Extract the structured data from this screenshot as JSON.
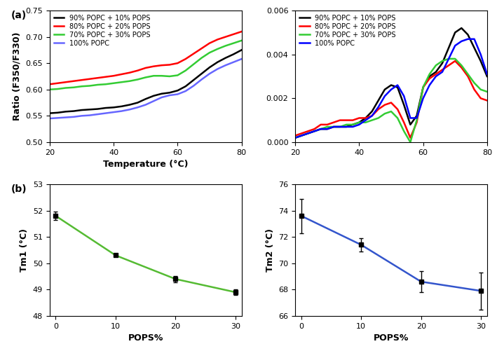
{
  "chart_data": [
    {
      "type": "line",
      "annotations": [
        "(a)"
      ],
      "x_label": "Temperature (°C)",
      "y_label": "Ratio (F350/F330)",
      "x": [
        20,
        22.5,
        25,
        27.5,
        30,
        32.5,
        35,
        37.5,
        40,
        42.5,
        45,
        47.5,
        50,
        52.5,
        55,
        57.5,
        60,
        62.5,
        65,
        67.5,
        70,
        72.5,
        75,
        77.5,
        80
      ],
      "series": [
        {
          "name": "90% POPC + 10% POPS",
          "color": "#000000",
          "values": [
            0.555,
            0.556,
            0.558,
            0.559,
            0.561,
            0.562,
            0.563,
            0.565,
            0.566,
            0.568,
            0.571,
            0.575,
            0.582,
            0.588,
            0.592,
            0.594,
            0.598,
            0.606,
            0.618,
            0.63,
            0.642,
            0.652,
            0.66,
            0.667,
            0.675
          ]
        },
        {
          "name": "80% POPC + 20% POPS",
          "color": "#ff0000",
          "values": [
            0.61,
            0.612,
            0.614,
            0.616,
            0.618,
            0.62,
            0.622,
            0.624,
            0.626,
            0.629,
            0.632,
            0.636,
            0.641,
            0.644,
            0.646,
            0.647,
            0.65,
            0.658,
            0.668,
            0.678,
            0.688,
            0.695,
            0.7,
            0.705,
            0.71
          ]
        },
        {
          "name": "70% POPC + 30% POPS",
          "color": "#33cc33",
          "values": [
            0.6,
            0.601,
            0.603,
            0.604,
            0.606,
            0.607,
            0.609,
            0.61,
            0.612,
            0.614,
            0.616,
            0.619,
            0.623,
            0.626,
            0.626,
            0.625,
            0.627,
            0.636,
            0.648,
            0.66,
            0.67,
            0.677,
            0.683,
            0.688,
            0.693
          ]
        },
        {
          "name": "100% POPC",
          "color": "#6666ff",
          "values": [
            0.545,
            0.546,
            0.547,
            0.548,
            0.55,
            0.551,
            0.553,
            0.555,
            0.557,
            0.559,
            0.562,
            0.566,
            0.571,
            0.578,
            0.585,
            0.589,
            0.591,
            0.597,
            0.607,
            0.619,
            0.63,
            0.639,
            0.646,
            0.652,
            0.658
          ]
        }
      ],
      "xlim": [
        20,
        80
      ],
      "xticks": [
        20,
        40,
        60,
        80
      ],
      "ylim": [
        0.5,
        0.75
      ],
      "yticks": [
        {
          "value": 0.5,
          "label": "0.50"
        },
        0.55,
        {
          "value": 0.6,
          "label": "0.60"
        },
        0.65,
        {
          "value": 0.7,
          "label": "0.70"
        },
        0.75
      ],
      "legend": "upper left"
    },
    {
      "type": "line",
      "x": [
        20,
        22,
        24,
        26,
        28,
        30,
        32,
        34,
        36,
        38,
        40,
        42,
        44,
        46,
        48,
        50,
        52,
        54,
        56,
        58,
        60,
        62,
        64,
        66,
        68,
        70,
        72,
        74,
        76,
        78,
        80
      ],
      "series": [
        {
          "name": "90% POPC + 10% POPS",
          "color": "#000000",
          "values": [
            0.0002,
            0.0003,
            0.0004,
            0.0005,
            0.0006,
            0.0006,
            0.0007,
            0.0007,
            0.0007,
            0.0008,
            0.0009,
            0.0011,
            0.0014,
            0.0019,
            0.0024,
            0.0026,
            0.0025,
            0.0017,
            0.0008,
            0.0012,
            0.0025,
            0.003,
            0.0032,
            0.0036,
            0.0043,
            0.005,
            0.0052,
            0.0049,
            0.0043,
            0.0037,
            0.003
          ]
        },
        {
          "name": "80% POPC + 20% POPS",
          "color": "#ff0000",
          "values": [
            0.0003,
            0.0004,
            0.0005,
            0.0006,
            0.0008,
            0.0008,
            0.0009,
            0.001,
            0.001,
            0.001,
            0.0011,
            0.0011,
            0.0012,
            0.0015,
            0.0017,
            0.0018,
            0.0015,
            0.0009,
            0.0002,
            0.0009,
            0.0025,
            0.0029,
            0.0031,
            0.0033,
            0.0035,
            0.0037,
            0.0034,
            0.003,
            0.0024,
            0.002,
            0.0019
          ]
        },
        {
          "name": "70% POPC + 30% POPS",
          "color": "#33cc33",
          "values": [
            0.0002,
            0.0003,
            0.0004,
            0.0005,
            0.0006,
            0.0007,
            0.0007,
            0.0007,
            0.0008,
            0.0008,
            0.0009,
            0.0009,
            0.001,
            0.0011,
            0.0013,
            0.0014,
            0.0011,
            0.0005,
            0.0,
            0.001,
            0.0025,
            0.0031,
            0.0035,
            0.0037,
            0.0038,
            0.0038,
            0.0035,
            0.0031,
            0.0027,
            0.0024,
            0.0023
          ]
        },
        {
          "name": "100% POPC",
          "color": "#0000ff",
          "values": [
            0.0002,
            0.0003,
            0.0004,
            0.0005,
            0.0006,
            0.0006,
            0.0007,
            0.0007,
            0.0007,
            0.0007,
            0.0008,
            0.001,
            0.0012,
            0.0016,
            0.0021,
            0.0024,
            0.0026,
            0.0021,
            0.0011,
            0.0011,
            0.002,
            0.0026,
            0.003,
            0.0032,
            0.0038,
            0.0044,
            0.0046,
            0.0047,
            0.0047,
            0.004,
            0.0031
          ]
        }
      ],
      "xlim": [
        20,
        80
      ],
      "xticks": [
        20,
        40,
        60,
        80
      ],
      "ylim": [
        0,
        0.006
      ],
      "yticks": [
        {
          "value": 0,
          "label": "0.000"
        },
        {
          "value": 0.002,
          "label": "0.002"
        },
        {
          "value": 0.004,
          "label": "0.004"
        },
        {
          "value": 0.006,
          "label": "0.006"
        }
      ],
      "legend": "upper left"
    },
    {
      "type": "line",
      "annotations": [
        "(b)"
      ],
      "x_label": "POPS%",
      "y_label": "Tm1 (°C)",
      "x": [
        0,
        10,
        20,
        30
      ],
      "values": [
        51.8,
        50.3,
        49.4,
        48.9
      ],
      "errors": [
        0.15,
        0.05,
        0.12,
        0.1
      ],
      "color": "#55bb33",
      "marker": "square",
      "xlim": [
        -1,
        31
      ],
      "xticks": [
        0,
        10,
        20,
        30
      ],
      "ylim": [
        48,
        53
      ],
      "yticks": [
        48,
        49,
        50,
        51,
        52,
        53
      ]
    },
    {
      "type": "line",
      "x_label": "POPS%",
      "y_label": "Tm2 (°C)",
      "x": [
        0,
        10,
        20,
        30
      ],
      "values": [
        73.6,
        71.4,
        68.6,
        67.9
      ],
      "errors": [
        1.3,
        0.5,
        0.8,
        1.4
      ],
      "color": "#3355cc",
      "marker": "square",
      "xlim": [
        -1,
        31
      ],
      "xticks": [
        0,
        10,
        20,
        30
      ],
      "ylim": [
        66,
        76
      ],
      "yticks": [
        66,
        68,
        70,
        72,
        74,
        76
      ]
    }
  ]
}
